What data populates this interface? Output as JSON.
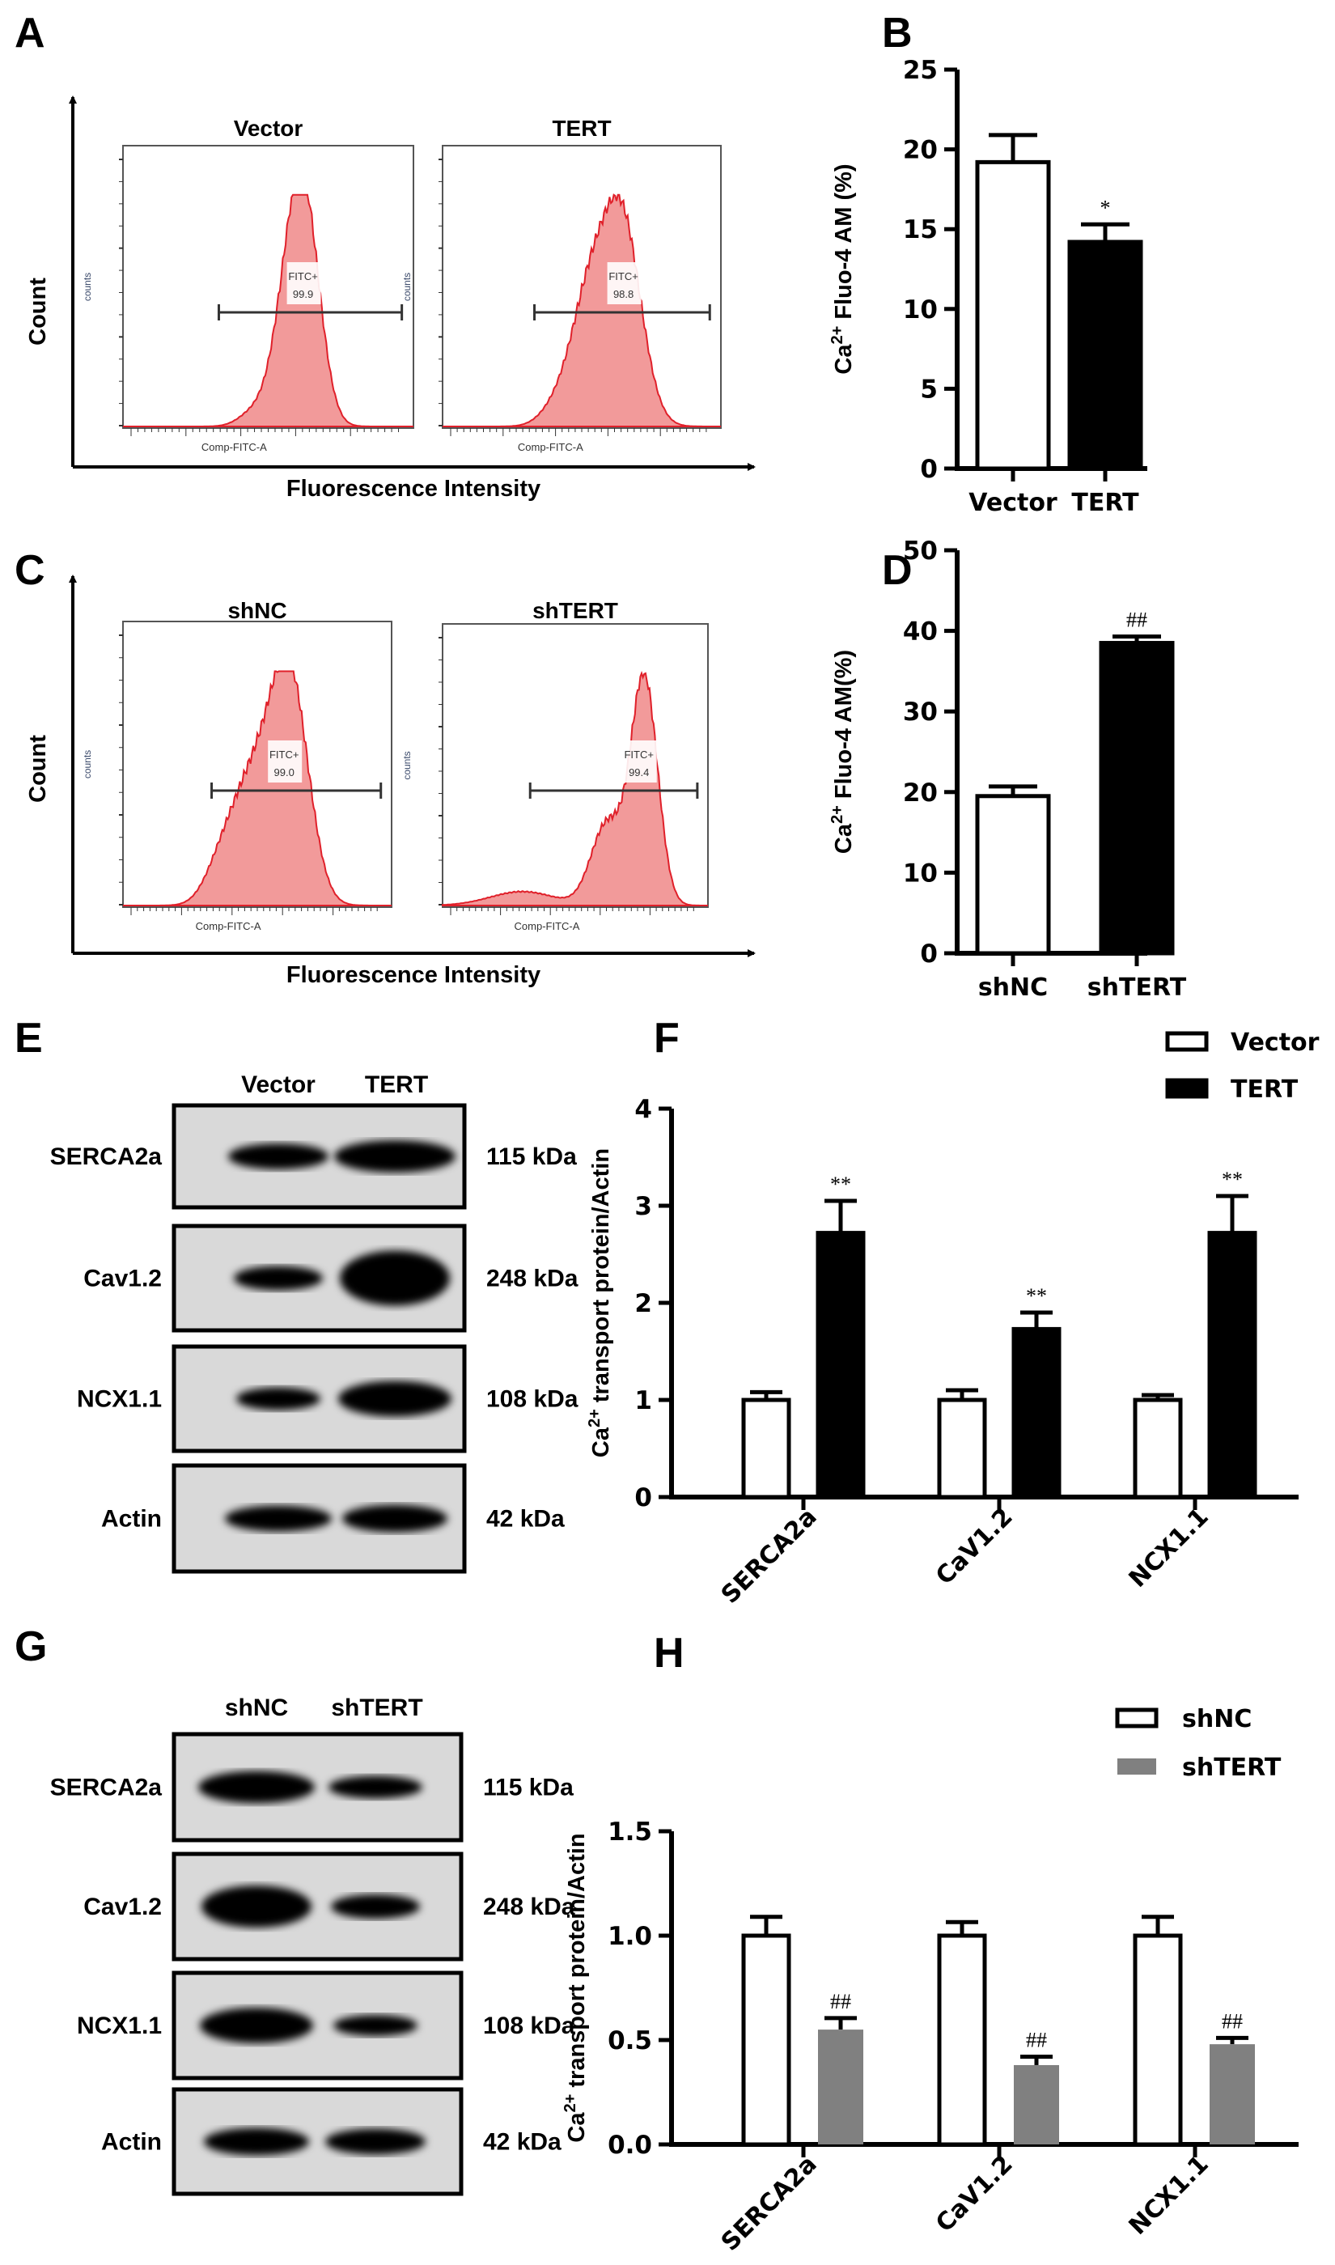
{
  "panels": {
    "A": "A",
    "B": "B",
    "C": "C",
    "D": "D",
    "E": "E",
    "F": "F",
    "G": "G",
    "H": "H"
  },
  "flow": {
    "A": {
      "samples": [
        {
          "title": "Vector",
          "gate_label": "FITC+",
          "gate_value": "99.9"
        },
        {
          "title": "TERT",
          "gate_label": "FITC+",
          "gate_value": "98.8"
        }
      ],
      "y_label": "Count",
      "x_label": "Fluorescence Intensity",
      "inner_y": "counts",
      "inner_x": "Comp-FITC-A"
    },
    "C": {
      "samples": [
        {
          "title": "shNC",
          "gate_label": "FITC+",
          "gate_value": "99.0"
        },
        {
          "title": "shTERT",
          "gate_label": "FITC+",
          "gate_value": "99.4"
        }
      ],
      "y_label": "Count",
      "x_label": "Fluorescence Intensity",
      "inner_y": "counts",
      "inner_x": "Comp-FITC-A"
    },
    "fill_color": "#f29a9a",
    "line_color": "#e0202a"
  },
  "blots": {
    "E": {
      "lanes": [
        "Vector",
        "TERT"
      ],
      "rows": [
        {
          "protein": "SERCA2a",
          "size": "115 kDa"
        },
        {
          "protein": "Cav1.2",
          "size": "248 kDa"
        },
        {
          "protein": "NCX1.1",
          "size": "108 kDa"
        },
        {
          "protein": "Actin",
          "size": "42 kDa"
        }
      ]
    },
    "G": {
      "lanes": [
        "shNC",
        "shTERT"
      ],
      "rows": [
        {
          "protein": "SERCA2a",
          "size": "115 kDa"
        },
        {
          "protein": "Cav1.2",
          "size": "248 kDa"
        },
        {
          "protein": "NCX1.1",
          "size": "108 kDa"
        },
        {
          "protein": "Actin",
          "size": "42 kDa"
        }
      ]
    }
  },
  "chart_data": [
    {
      "panel": "B",
      "type": "bar",
      "categories": [
        "Vector",
        "TERT"
      ],
      "values": [
        19.2,
        14.2
      ],
      "errors": [
        1.7,
        1.1
      ],
      "colors": [
        "#ffffff",
        "#000000"
      ],
      "annotations": [
        "",
        "*"
      ],
      "ylabel": "Ca2+ Fluo-4 AM (%)",
      "ylabel_main": "Ca",
      "ylabel_sup": "2+",
      "ylabel_rest": " Fluo-4 AM (%)",
      "ylim": [
        0,
        25
      ],
      "yticks": [
        "0",
        "5",
        "10",
        "15",
        "20",
        "25"
      ],
      "grid": false
    },
    {
      "panel": "D",
      "type": "bar",
      "categories": [
        "shNC",
        "shTERT"
      ],
      "values": [
        19.5,
        38.5
      ],
      "errors": [
        1.2,
        0.8
      ],
      "colors": [
        "#ffffff",
        "#000000"
      ],
      "annotations": [
        "",
        "##"
      ],
      "ylabel": "Ca2+ Fluo-4 AM(%)",
      "ylabel_main": "Ca",
      "ylabel_sup": "2+",
      "ylabel_rest": " Fluo-4 AM(%)",
      "ylim": [
        0,
        50
      ],
      "yticks": [
        "0",
        "10",
        "20",
        "30",
        "40",
        "50"
      ],
      "grid": false
    },
    {
      "panel": "F",
      "type": "bar",
      "categories": [
        "SERCA2a",
        "CaV1.2",
        "NCX1.1"
      ],
      "series": [
        {
          "name": "Vector",
          "values": [
            1.0,
            1.0,
            1.0
          ],
          "errors": [
            0.08,
            0.1,
            0.05
          ],
          "color": "#ffffff",
          "annotations": [
            "",
            "",
            ""
          ]
        },
        {
          "name": "TERT",
          "values": [
            2.72,
            1.73,
            2.72
          ],
          "errors": [
            0.33,
            0.17,
            0.38
          ],
          "color": "#000000",
          "annotations": [
            "**",
            "**",
            "**"
          ]
        }
      ],
      "ylabel": "Ca2+ transport protein/Actin",
      "ylabel_main": "Ca",
      "ylabel_sup": "2+",
      "ylabel_rest": " transport protein/Actin",
      "ylim": [
        0,
        4
      ],
      "yticks": [
        "0",
        "1",
        "2",
        "3",
        "4"
      ],
      "legend": "top-right",
      "grid": false
    },
    {
      "panel": "H",
      "type": "bar",
      "categories": [
        "SERCA2a",
        "CaV1.2",
        "NCX1.1"
      ],
      "series": [
        {
          "name": "shNC",
          "values": [
            1.0,
            1.0,
            1.0
          ],
          "errors": [
            0.09,
            0.065,
            0.09
          ],
          "color": "#ffffff",
          "annotations": [
            "",
            "",
            ""
          ]
        },
        {
          "name": "shTERT",
          "values": [
            0.55,
            0.38,
            0.48
          ],
          "errors": [
            0.055,
            0.04,
            0.03
          ],
          "color": "#808080",
          "annotations": [
            "##",
            "##",
            "##"
          ]
        }
      ],
      "ylabel": "Ca2+ transport protein/Actin",
      "ylabel_main": "Ca",
      "ylabel_sup": "2+",
      "ylabel_rest": " transport protein/Actin",
      "ylim": [
        0,
        1.5
      ],
      "yticks": [
        "0.0",
        "0.5",
        "1.0",
        "1.5"
      ],
      "legend": "top-right",
      "grid": false
    }
  ]
}
